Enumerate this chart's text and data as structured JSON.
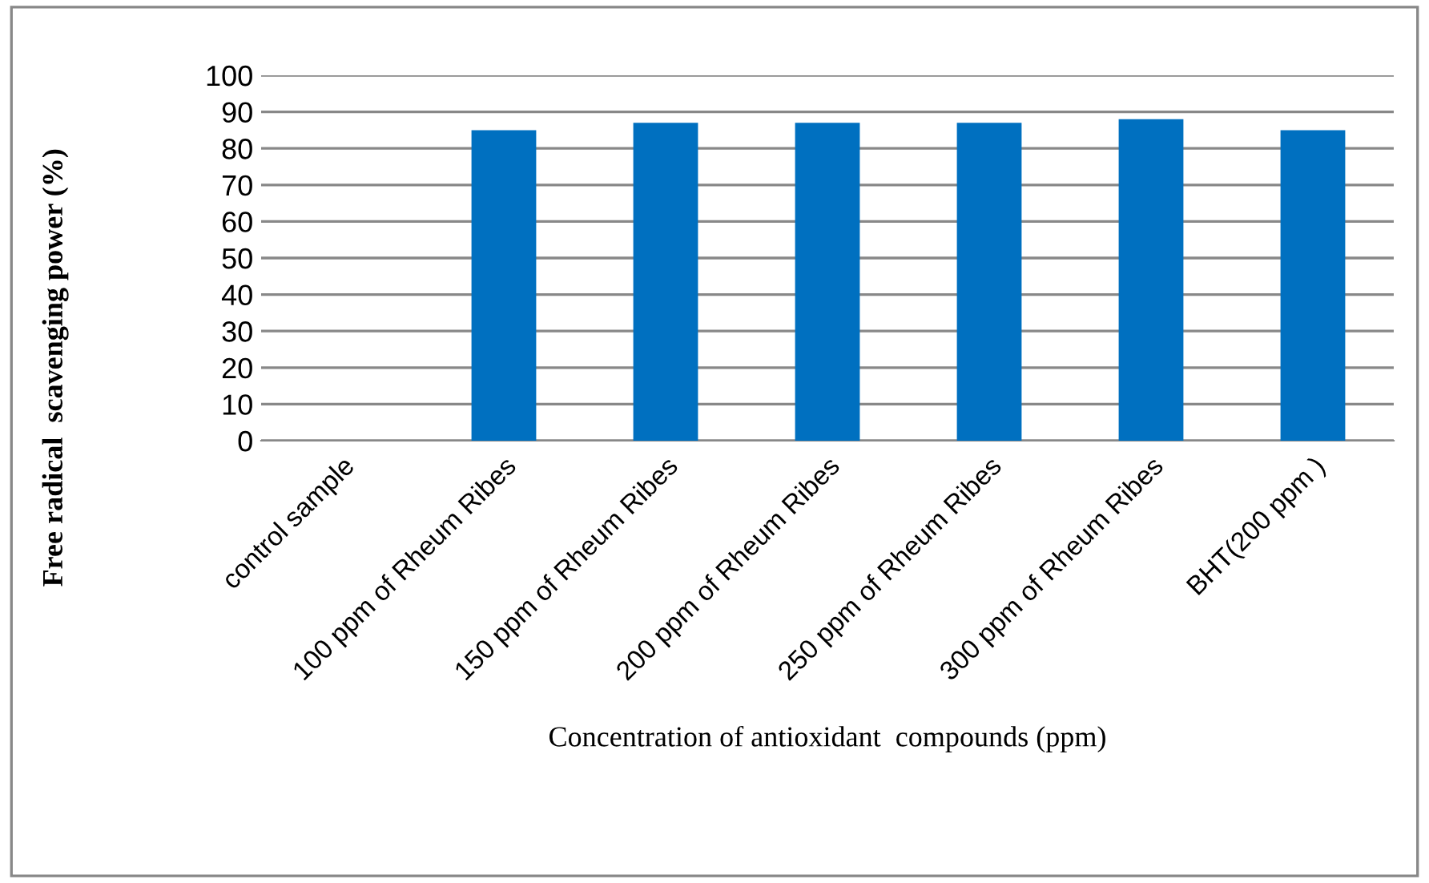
{
  "chart_data": {
    "type": "bar",
    "xlabel": "Concentration of antioxidant  compounds (ppm)",
    "ylabel": "Free radical  scavenging power (%)",
    "categories": [
      "control sample",
      "100 ppm of Rheum Ribes",
      "150 ppm of Rheum Ribes",
      "200 ppm of Rheum Ribes",
      "250 ppm of Rheum Ribes",
      "300 ppm of Rheum Ribes",
      "BHT(200 ppm )"
    ],
    "values": [
      0,
      85,
      87,
      87,
      87,
      88,
      85
    ],
    "color": "#0070c0",
    "ylim": [
      0,
      100
    ],
    "yticks": [
      0,
      10,
      20,
      30,
      40,
      50,
      60,
      70,
      80,
      90,
      100
    ],
    "grid": "y",
    "legend": false
  }
}
